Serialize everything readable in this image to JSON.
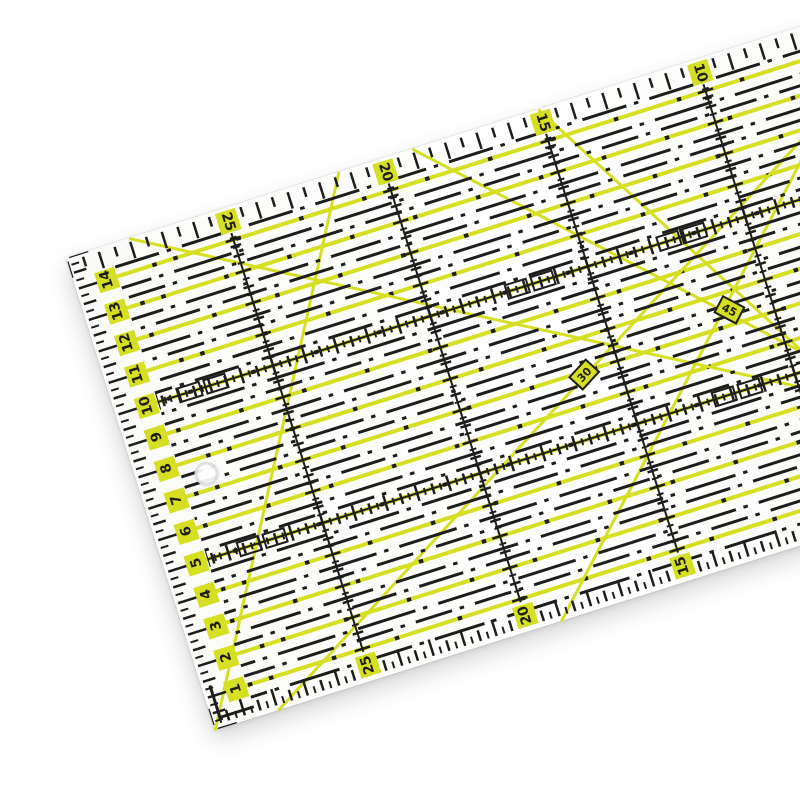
{
  "colors": {
    "yellow": "#d7df23",
    "black": "#1d1d1b",
    "ruler_body": "#ffffff",
    "background": "#ffffff",
    "hole_ring": "#cccccc"
  },
  "ruler": {
    "left_numbers": [
      "1",
      "2",
      "3",
      "4",
      "5",
      "6",
      "7",
      "8",
      "9",
      "10",
      "11",
      "12",
      "13",
      "14"
    ],
    "top_labels": [
      {
        "text": "25",
        "cm": 5
      },
      {
        "text": "20",
        "cm": 10
      },
      {
        "text": "15",
        "cm": 15
      },
      {
        "text": "10",
        "cm": 20
      }
    ],
    "bottom_labels": [
      {
        "text": "25",
        "cm": 5
      },
      {
        "text": "20",
        "cm": 10
      },
      {
        "text": "15",
        "cm": 15
      }
    ],
    "angle_labels": [
      {
        "text": "30",
        "x_cm": 13.9,
        "y_cm": 8.1,
        "rot_deg": -30
      },
      {
        "text": "45",
        "x_cm": 18.7,
        "y_cm": 7.55,
        "rot_deg": 45
      }
    ]
  }
}
